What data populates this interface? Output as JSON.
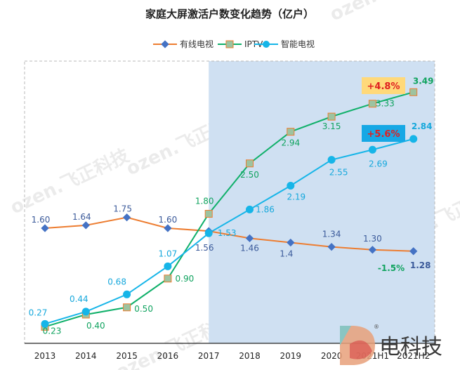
{
  "colors": {
    "cable": "#ED7D31",
    "cable_marker": "#4472C4",
    "iptv": "#10B06A",
    "iptv_marker": "#9DC3A0",
    "iptv_marker_stroke": "#ED7D31",
    "smart": "#16B5E8",
    "cable_label": "#3B5A9A",
    "iptv_label": "#10A35F",
    "smart_label": "#16A8DC",
    "highlight_bg": "#CFE0F2",
    "badge_iptv_bg": "#FFD97A",
    "badge_smart_bg": "#16A8E5",
    "badge_text": "#E02020"
  },
  "chart_data": {
    "type": "line",
    "title": "家庭大屏激活户数变化趋势（亿户）",
    "categories": [
      "2013",
      "2014",
      "2015",
      "2016",
      "2017",
      "2018",
      "2019",
      "2020",
      "2021H1",
      "2021H2"
    ],
    "ylim": [
      0,
      4
    ],
    "grid": false,
    "legend_position": "top",
    "highlight_from_category": "2017",
    "series": [
      {
        "name": "有线电视",
        "values": [
          1.6,
          1.64,
          1.75,
          1.6,
          1.56,
          1.46,
          1.4,
          1.34,
          1.3,
          1.28
        ],
        "labels": [
          "1.60",
          "1.64",
          "1.75",
          "1.60",
          "1.56",
          "1.46",
          "1.4",
          "1.34",
          "1.30",
          "1.28"
        ]
      },
      {
        "name": "IPTV",
        "values": [
          0.23,
          0.4,
          0.5,
          0.9,
          1.8,
          2.5,
          2.94,
          3.15,
          3.33,
          3.49
        ],
        "labels": [
          "0.23",
          "0.40",
          "0.50",
          "0.90",
          "1.80",
          "2.50",
          "2.94",
          "3.15",
          "3.33",
          "3.49"
        ]
      },
      {
        "name": "智能电视",
        "values": [
          0.27,
          0.44,
          0.68,
          1.07,
          1.53,
          1.86,
          2.19,
          2.55,
          2.69,
          2.84
        ],
        "labels": [
          "0.27",
          "0.44",
          "0.68",
          "1.07",
          "1.53",
          "1.86",
          "2.19",
          "2.55",
          "2.69",
          "2.84"
        ]
      }
    ],
    "annotations": {
      "iptv_growth": "+4.8%",
      "smart_growth": "+5.6%",
      "cable_change": "-1.5%"
    }
  },
  "branding": {
    "logo_text": "电科技",
    "watermark": "ozen.飞正科技"
  }
}
